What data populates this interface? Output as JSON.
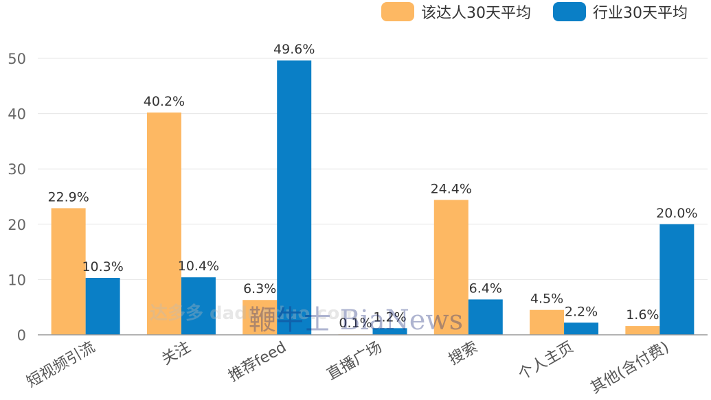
{
  "chart_data": {
    "type": "bar",
    "categories": [
      "短视频引流",
      "关注",
      "推荐feed",
      "直播广场",
      "搜索",
      "个人主页",
      "其他(含付费)"
    ],
    "series": [
      {
        "name": "该达人30天平均",
        "color": "#FDB863",
        "values": [
          22.9,
          40.2,
          6.3,
          0.1,
          24.4,
          4.5,
          1.6
        ]
      },
      {
        "name": "行业30天平均",
        "color": "#0A7FC6",
        "values": [
          10.3,
          10.4,
          49.6,
          1.2,
          6.4,
          2.2,
          20.0
        ]
      }
    ],
    "data_labels": [
      [
        "22.9%",
        "40.2%",
        "6.3%",
        "0.1%",
        "24.4%",
        "4.5%",
        "1.6%"
      ],
      [
        "10.3%",
        "10.4%",
        "49.6%",
        "1.2%",
        "6.4%",
        "2.2%",
        "20.0%"
      ]
    ],
    "yticks": [
      "0",
      "10",
      "20",
      "30",
      "40",
      "50"
    ],
    "ylim": [
      0,
      50
    ],
    "grid": true,
    "legend_position": "top-right"
  },
  "watermark": {
    "text": "达多多 daduoduo.com",
    "text2": "鞭牛士 BiaNews"
  }
}
